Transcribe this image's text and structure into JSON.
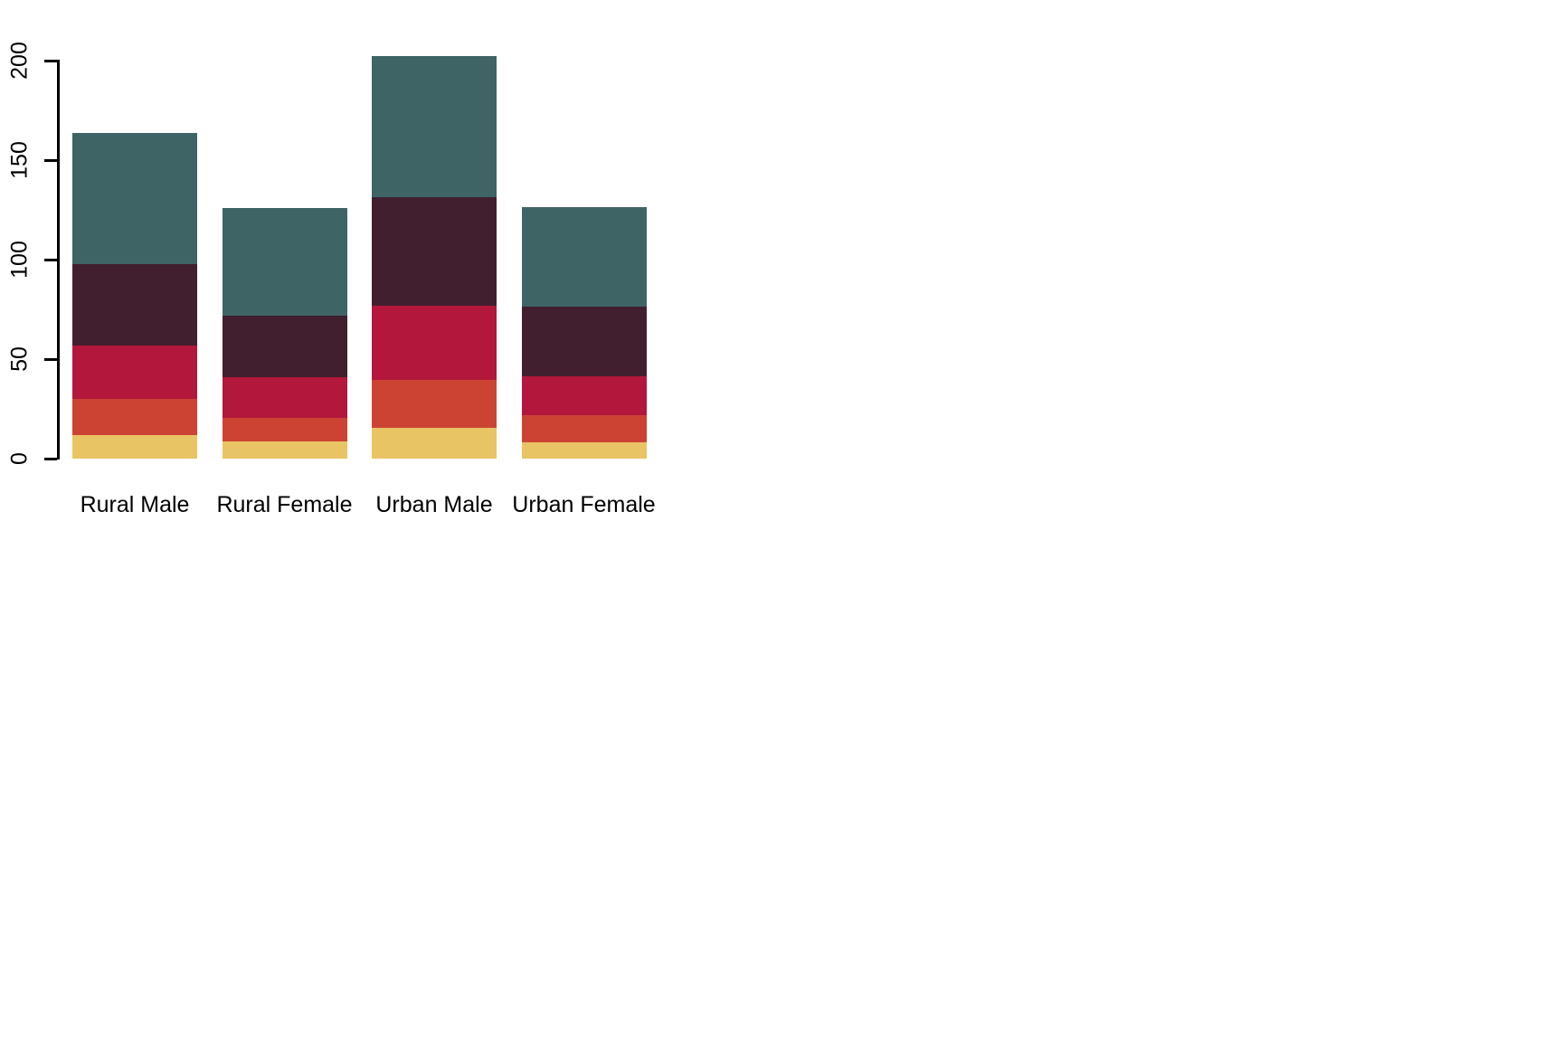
{
  "accent_colors": {
    "axis": "#000000",
    "text": "#000000",
    "background": "#ffffff"
  },
  "chart_data": [
    {
      "id": "top-left",
      "type": "bar",
      "stacked": true,
      "title": "",
      "xlabel": "",
      "ylabel": "",
      "grid": false,
      "legend": "none",
      "categories": [
        "Rural Male",
        "Rural Female",
        "Urban Male",
        "Urban Female"
      ],
      "yticks": [
        "0",
        "50",
        "100",
        "150",
        "200"
      ],
      "ytick_values": [
        0,
        50,
        100,
        150,
        200
      ],
      "ylim": [
        0,
        203
      ],
      "series": [
        {
          "values": [
            11.7,
            8.7,
            15.4,
            8.4
          ],
          "color": "#212436"
        },
        {
          "values": [
            18.1,
            11.7,
            24.3,
            13.6
          ],
          "color": "#676a6e"
        },
        {
          "values": [
            26.9,
            20.3,
            37.0,
            19.3
          ],
          "color": "#a3abc6"
        },
        {
          "values": [
            41.0,
            30.9,
            54.6,
            35.1
          ],
          "color": "#5c0120"
        },
        {
          "values": [
            66.0,
            54.3,
            71.1,
            50.0
          ],
          "color": "#8a3a62"
        }
      ]
    },
    {
      "id": "top-right",
      "type": "bar",
      "stacked": true,
      "title": "",
      "xlabel": "",
      "ylabel": "",
      "grid": false,
      "legend": "none",
      "categories": [
        "Rural Male",
        "Rural Female",
        "Urban Male",
        "Urban Female"
      ],
      "yticks": [
        "0",
        "50",
        "100",
        "150",
        "200"
      ],
      "ytick_values": [
        0,
        50,
        100,
        150,
        200
      ],
      "ylim": [
        0,
        203
      ],
      "series": [
        {
          "values": [
            11.7,
            8.7,
            15.4,
            8.4
          ],
          "color": "#f92a58"
        },
        {
          "values": [
            18.1,
            11.7,
            24.3,
            13.6
          ],
          "color": "#f88d8b"
        },
        {
          "values": [
            26.9,
            20.3,
            37.0,
            19.3
          ],
          "color": "#f5c49e"
        },
        {
          "values": [
            41.0,
            30.9,
            54.6,
            35.1
          ],
          "color": "#bcbf98"
        },
        {
          "values": [
            66.0,
            54.3,
            71.1,
            50.0
          ],
          "color": "#74a28c"
        }
      ]
    },
    {
      "id": "bottom-left",
      "type": "bar",
      "stacked": true,
      "title": "",
      "xlabel": "",
      "ylabel": "",
      "grid": false,
      "legend": "none",
      "categories": [
        "Rural Male",
        "Rural Female",
        "Urban Male",
        "Urban Female"
      ],
      "yticks": [
        "0",
        "50",
        "100",
        "150",
        "200"
      ],
      "ytick_values": [
        0,
        50,
        100,
        150,
        200
      ],
      "ylim": [
        0,
        203
      ],
      "series": [
        {
          "values": [
            11.7,
            8.7,
            15.4,
            8.4
          ],
          "color": "#57c7e3"
        },
        {
          "values": [
            18.1,
            11.7,
            24.3,
            13.6
          ],
          "color": "#93d2cc"
        },
        {
          "values": [
            26.9,
            20.3,
            37.0,
            19.3
          ],
          "color": "#d9dcc0"
        },
        {
          "values": [
            41.0,
            30.9,
            54.6,
            35.1
          ],
          "color": "#ee7229"
        },
        {
          "values": [
            66.0,
            54.3,
            71.1,
            50.0
          ],
          "color": "#f4510a"
        }
      ]
    },
    {
      "id": "bottom-right",
      "type": "bar",
      "stacked": true,
      "title": "",
      "xlabel": "",
      "ylabel": "",
      "grid": false,
      "legend": "none",
      "categories": [
        "Rural Male",
        "Rural Female",
        "Urban Male",
        "Urban Female"
      ],
      "yticks": [
        "0",
        "50",
        "100",
        "150",
        "200"
      ],
      "ytick_values": [
        0,
        50,
        100,
        150,
        200
      ],
      "ylim": [
        0,
        203
      ],
      "series": [
        {
          "values": [
            11.7,
            8.7,
            15.4,
            8.4
          ],
          "color": "#e9c464"
        },
        {
          "values": [
            18.1,
            11.7,
            24.3,
            13.6
          ],
          "color": "#cc4334"
        },
        {
          "values": [
            26.9,
            20.3,
            37.0,
            19.3
          ],
          "color": "#b3173b"
        },
        {
          "values": [
            41.0,
            30.9,
            54.6,
            35.1
          ],
          "color": "#411f2e"
        },
        {
          "values": [
            66.0,
            54.3,
            71.1,
            50.0
          ],
          "color": "#3e6466"
        }
      ]
    }
  ]
}
